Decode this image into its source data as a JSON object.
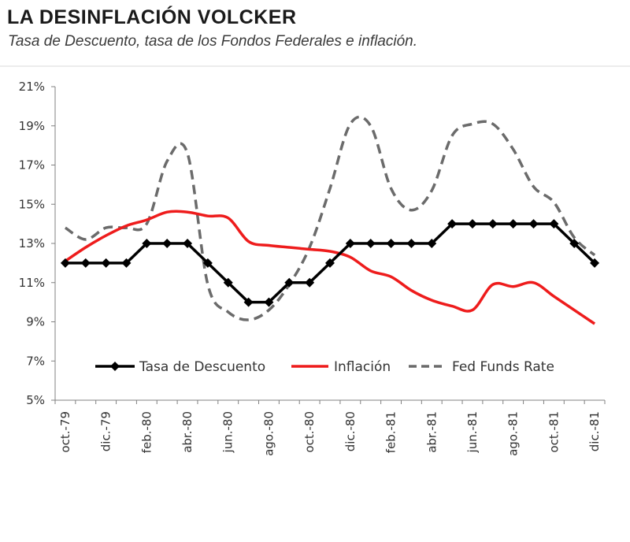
{
  "chart_data": {
    "type": "line",
    "title": "LA DESINFLACIÓN VOLCKER",
    "subtitle": "Tasa de Descuento, tasa de los Fondos Federales e inflación.",
    "xlabel": "",
    "ylabel": "",
    "ylim": [
      5,
      21
    ],
    "y_ticks": [
      "5%",
      "7%",
      "9%",
      "11%",
      "13%",
      "15%",
      "17%",
      "19%",
      "21%"
    ],
    "x_tick_labels": [
      "oct.-79",
      "dic.-79",
      "feb.-80",
      "abr.-80",
      "jun.-80",
      "ago.-80",
      "oct.-80",
      "dic.-80",
      "feb.-81",
      "abr.-81",
      "jun.-81",
      "ago.-81",
      "oct.-81",
      "dic.-81"
    ],
    "months": [
      "oct.-79",
      "nov.-79",
      "dic.-79",
      "ene.-80",
      "feb.-80",
      "mar.-80",
      "abr.-80",
      "may.-80",
      "jun.-80",
      "jul.-80",
      "ago.-80",
      "sep.-80",
      "oct.-80",
      "nov.-80",
      "dic.-80",
      "ene.-81",
      "feb.-81",
      "mar.-81",
      "abr.-81",
      "may.-81",
      "jun.-81",
      "jul.-81",
      "ago.-81",
      "sep.-81",
      "oct.-81",
      "nov.-81",
      "dic.-81"
    ],
    "series": [
      {
        "name": "Tasa de Descuento",
        "style": "solid-diamond",
        "color": "#000000",
        "values": [
          12,
          12,
          12,
          12,
          13,
          13,
          13,
          12,
          11,
          10,
          10,
          11,
          11,
          12,
          13,
          13,
          13,
          13,
          13,
          14,
          14,
          14,
          14,
          14,
          14,
          13,
          12
        ]
      },
      {
        "name": "Inflación",
        "style": "solid",
        "color": "#ee1c1c",
        "values": [
          12.1,
          12.8,
          13.4,
          13.9,
          14.2,
          14.6,
          14.6,
          14.4,
          14.3,
          13.1,
          12.9,
          12.8,
          12.7,
          12.6,
          12.3,
          11.6,
          11.3,
          10.6,
          10.1,
          9.8,
          9.6,
          10.9,
          10.8,
          11.0,
          10.3,
          9.6,
          8.9
        ]
      },
      {
        "name": "Fed Funds Rate",
        "style": "dashed",
        "color": "#6b6b6b",
        "values": [
          13.8,
          13.2,
          13.8,
          13.8,
          14.0,
          17.2,
          17.6,
          10.9,
          9.5,
          9.1,
          9.6,
          10.9,
          12.8,
          15.8,
          19.1,
          19.0,
          15.8,
          14.7,
          15.7,
          18.5,
          19.1,
          19.1,
          17.8,
          15.9,
          15.1,
          13.3,
          12.4
        ]
      }
    ],
    "legend": {
      "position": "bottom-inside",
      "entries": [
        "Tasa de Descuento",
        "Inflación",
        "Fed Funds Rate"
      ]
    }
  }
}
